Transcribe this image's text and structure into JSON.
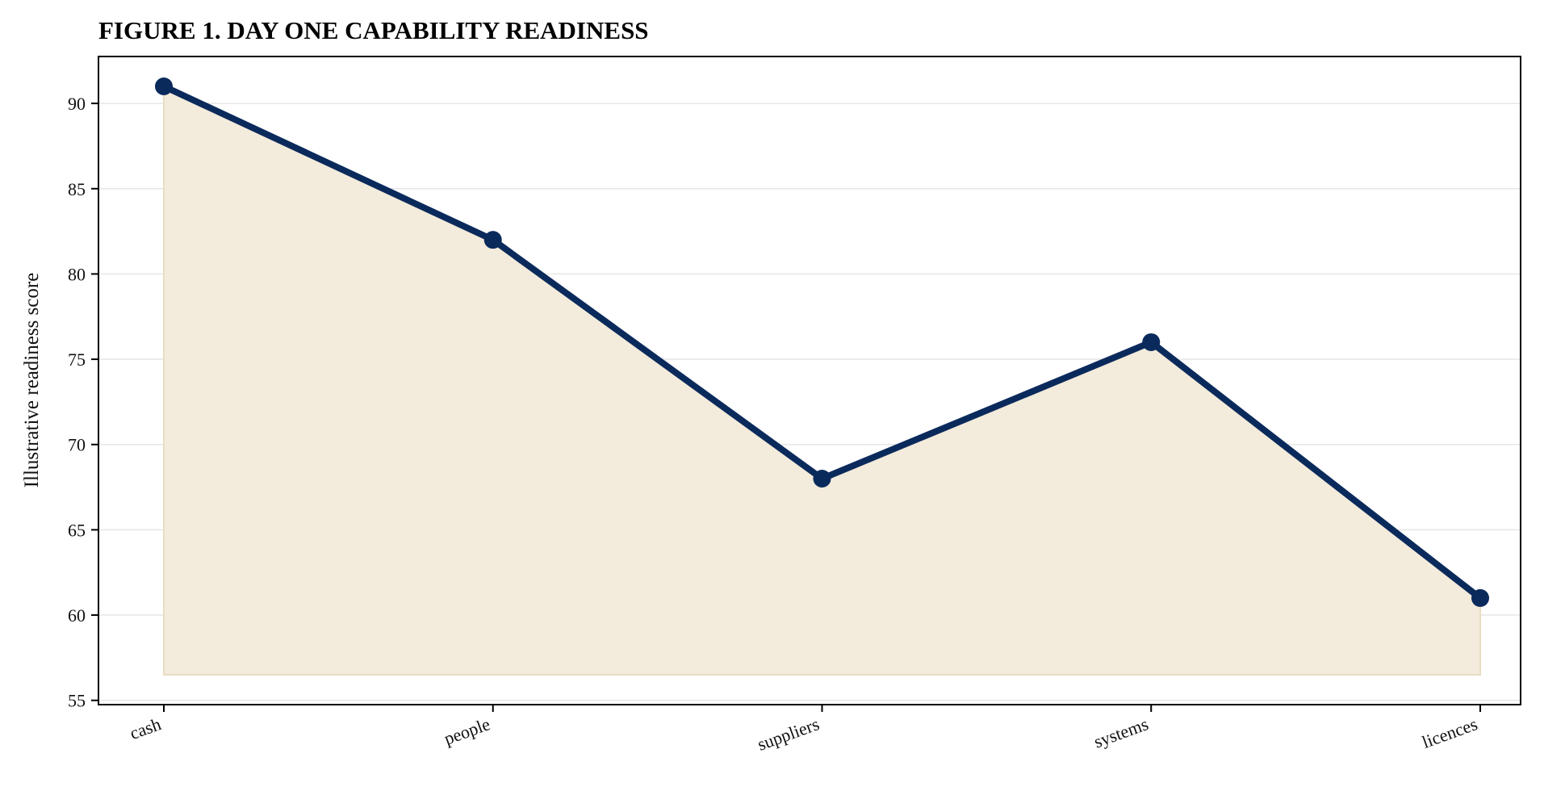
{
  "chart_data": {
    "type": "area",
    "title": "FIGURE 1. DAY ONE CAPABILITY READINESS",
    "xlabel": "",
    "ylabel": "Illustrative readiness score",
    "categories": [
      "cash",
      "people",
      "suppliers",
      "systems",
      "licences"
    ],
    "values": [
      91,
      82,
      68,
      76,
      61
    ],
    "area_baseline": 56.5,
    "ylim": [
      54.75,
      92.75
    ],
    "yticks": [
      55,
      60,
      65,
      70,
      75,
      80,
      85,
      90
    ],
    "grid": "horizontal",
    "legend": "none",
    "colors": {
      "line": "#0b2a5c",
      "marker": "#0b2a5c",
      "fill": "#f3ebdb",
      "fill_edge": "#e9dcc0",
      "grid": "#e6e6e6",
      "axes": "#000000"
    }
  }
}
